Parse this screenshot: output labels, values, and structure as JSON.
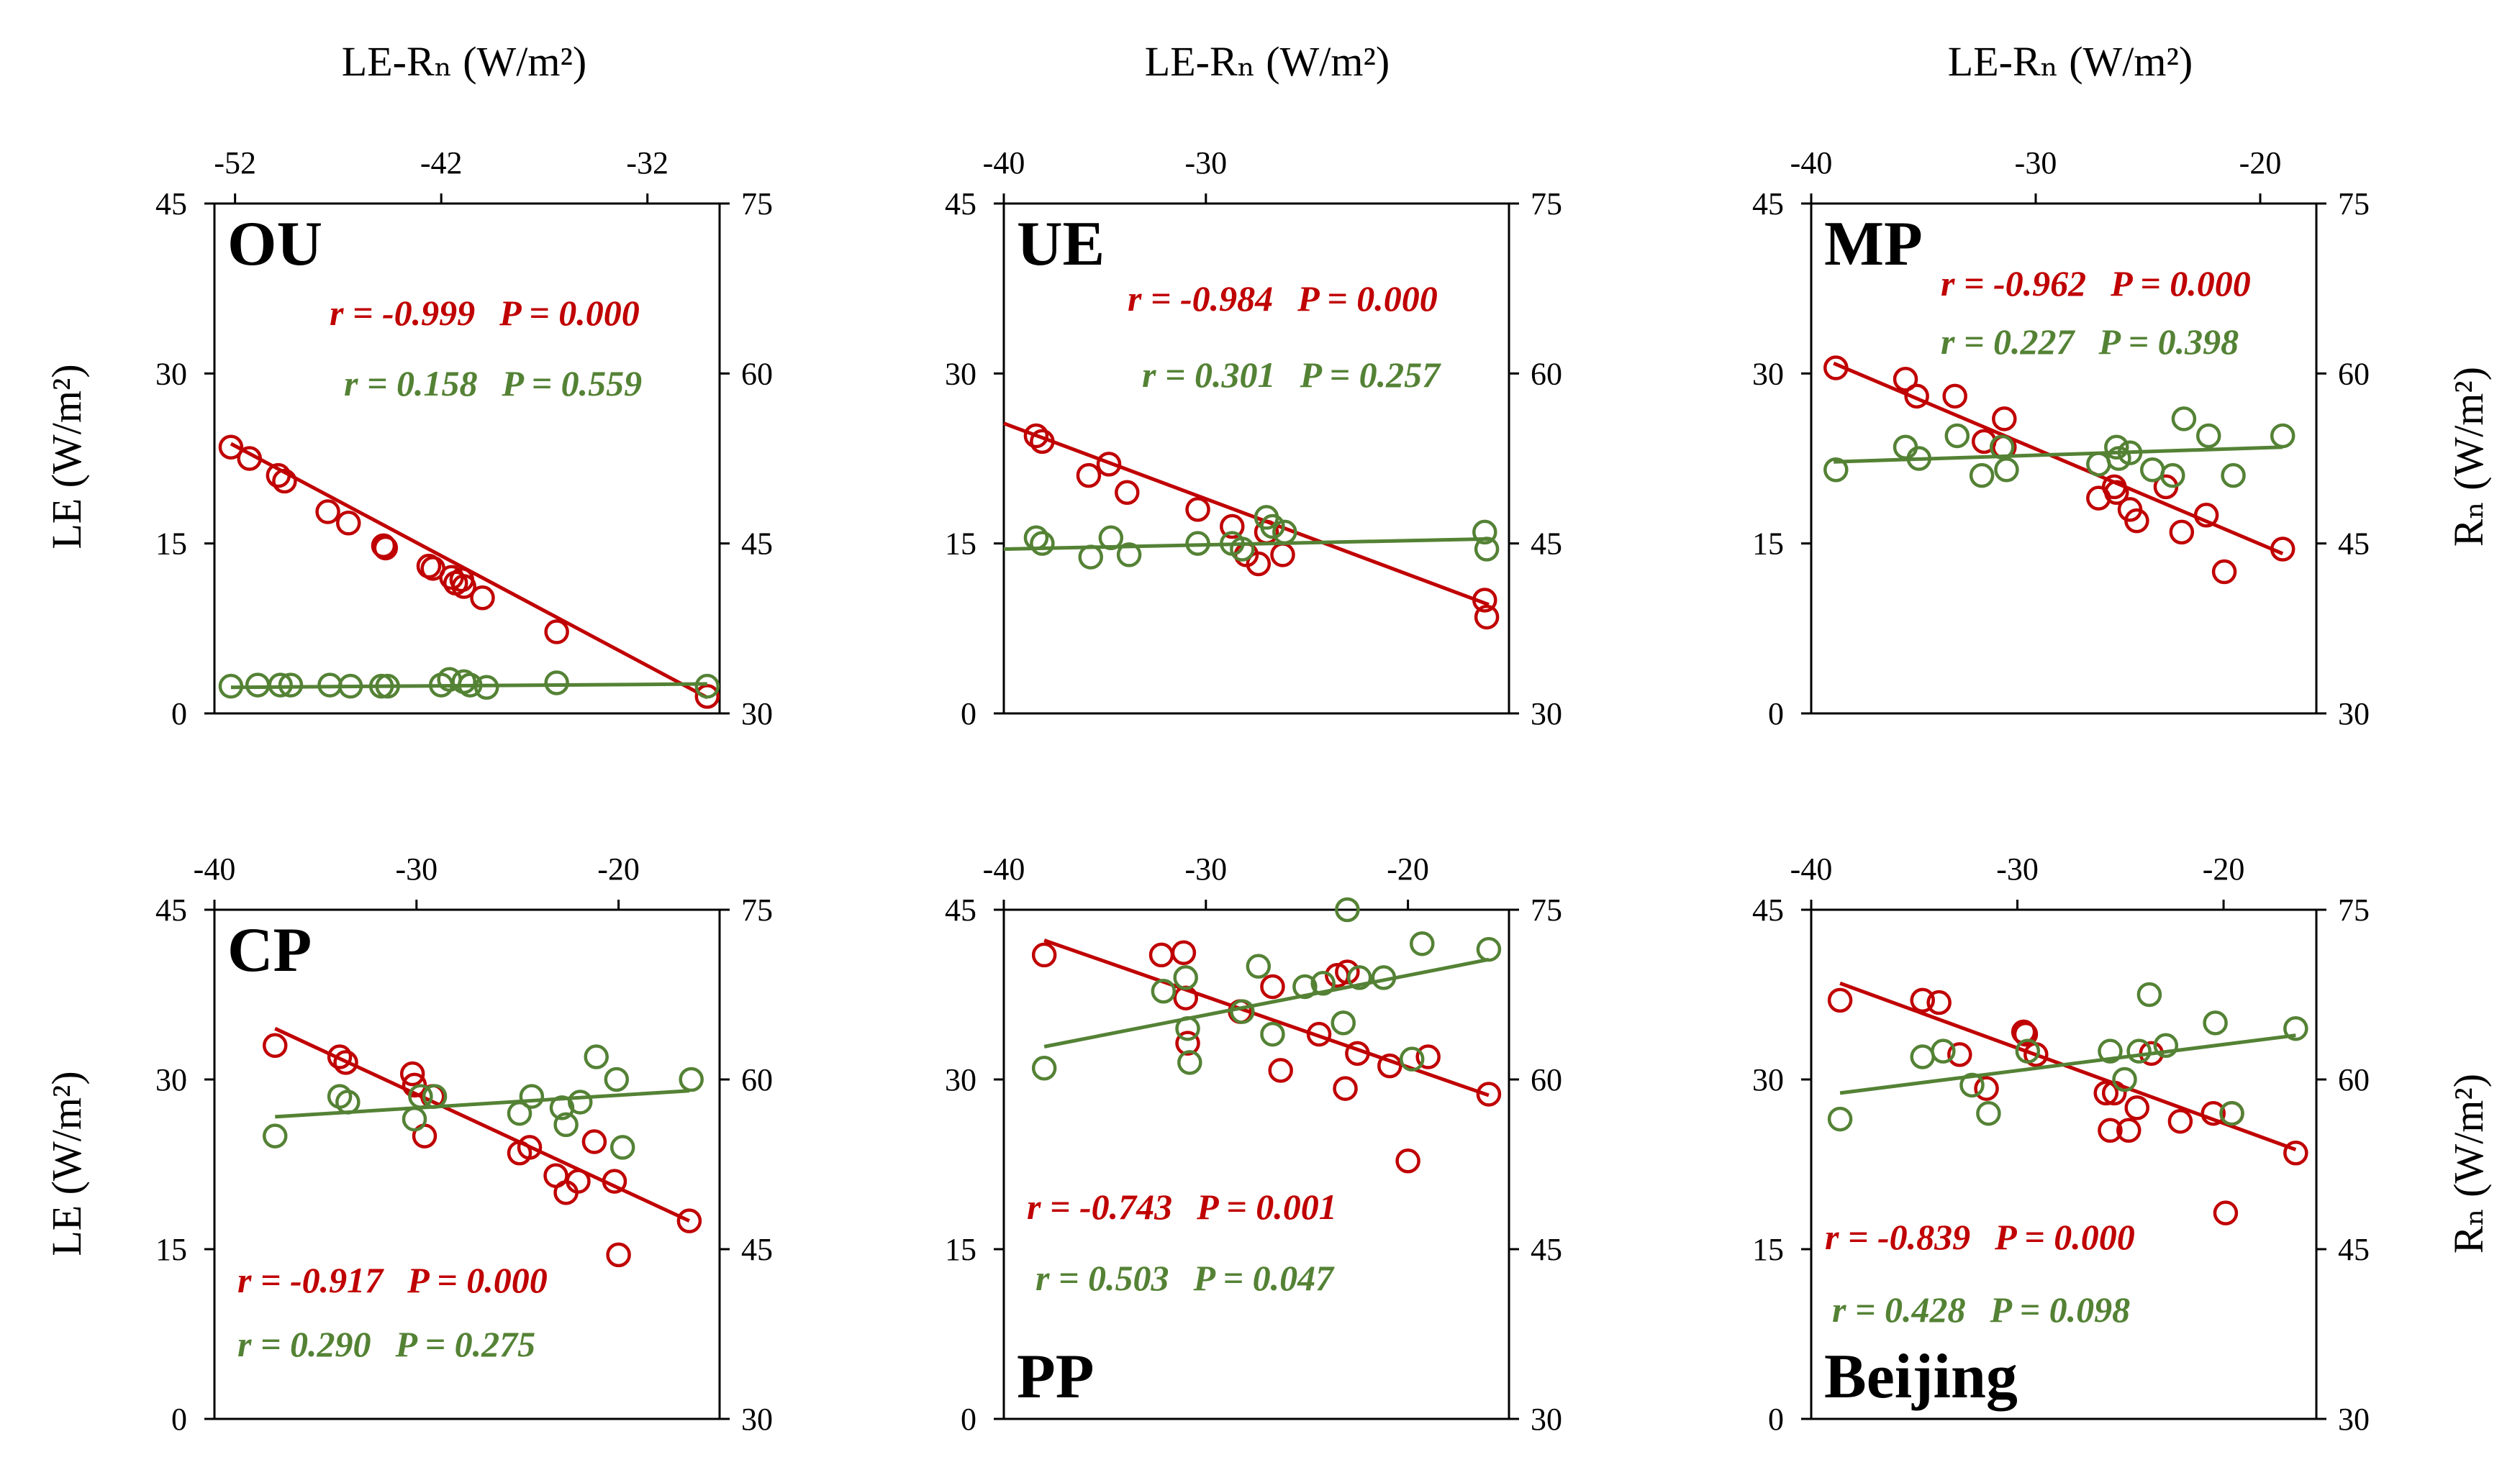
{
  "figure": {
    "ylabel_left": "LE (W/m²)",
    "ylabel_right": "Rₙ (W/m²)",
    "top_axis_title": "LE-Rₙ (W/m²)"
  },
  "colors": {
    "le": "#c00000",
    "rn": "#548235",
    "axis": "#000000"
  },
  "chart_data": [
    {
      "panel": "OU",
      "type": "scatter",
      "xlabel": "LE-Rₙ (W/m²)",
      "ylabel": "LE (W/m²)",
      "y2label": "Rₙ (W/m²)",
      "xlim": [
        -53,
        -28.5
      ],
      "xticks": [
        -52,
        -42,
        -32
      ],
      "xtick_labels": [
        "-52",
        "-42",
        "-32"
      ],
      "ylim": [
        0,
        45
      ],
      "yticks": [
        0,
        15,
        30,
        45
      ],
      "ytick_labels": [
        "0",
        "15",
        "30",
        "45"
      ],
      "y2lim": [
        30,
        75
      ],
      "y2ticks": [
        30,
        45,
        60,
        75
      ],
      "y2tick_labels": [
        "30",
        "45",
        "60",
        "75"
      ],
      "label_pos": "top-left",
      "series": [
        {
          "name": "LE",
          "axis": "left",
          "color": "#c00000",
          "x": [
            -52.2,
            -51.3,
            -49.9,
            -49.6,
            -47.5,
            -46.5,
            -44.8,
            -44.7,
            -42.6,
            -42.4,
            -41.5,
            -41.3,
            -41.0,
            -40.9,
            -40.0,
            -36.4,
            -29.1
          ],
          "y": [
            23.5,
            22.5,
            21.0,
            20.5,
            17.8,
            16.8,
            14.8,
            14.6,
            13.0,
            12.8,
            12.0,
            11.5,
            11.8,
            11.2,
            10.2,
            7.2,
            1.5
          ],
          "fit": {
            "x": [
              -52.2,
              -29.1
            ],
            "y": [
              23.8,
              1.4
            ]
          },
          "stat": {
            "r": "r = -0.999",
            "p": "P = 0.000"
          }
        },
        {
          "name": "Rn",
          "axis": "right",
          "color": "#548235",
          "x": [
            -52.2,
            -50.9,
            -49.8,
            -49.3,
            -47.4,
            -46.4,
            -44.9,
            -44.6,
            -42.0,
            -41.6,
            -40.9,
            -40.6,
            -39.8,
            -36.4,
            -29.1
          ],
          "y": [
            32.4,
            32.5,
            32.5,
            32.5,
            32.5,
            32.4,
            32.4,
            32.4,
            32.5,
            33.0,
            32.8,
            32.5,
            32.3,
            32.7,
            32.4
          ],
          "fit": {
            "x": [
              -52.2,
              -29.1
            ],
            "y": [
              32.3,
              32.6
            ]
          },
          "stat": {
            "r": "r = 0.158",
            "p": "P = 0.559"
          }
        }
      ]
    },
    {
      "panel": "UE",
      "type": "scatter",
      "xlabel": "LE-Rₙ (W/m²)",
      "ylabel": "LE (W/m²)",
      "y2label": "Rₙ (W/m²)",
      "xlim": [
        -40,
        -15
      ],
      "xticks": [
        -40,
        -30
      ],
      "xtick_labels": [
        "-40",
        "-30"
      ],
      "ylim": [
        0,
        45
      ],
      "yticks": [
        0,
        15,
        30,
        45
      ],
      "ytick_labels": [
        "0",
        "15",
        "30",
        "45"
      ],
      "y2lim": [
        30,
        75
      ],
      "y2ticks": [
        30,
        45,
        60,
        75
      ],
      "y2tick_labels": [
        "30",
        "45",
        "60",
        "75"
      ],
      "label_pos": "top-left",
      "series": [
        {
          "name": "LE",
          "axis": "left",
          "color": "#c00000",
          "x": [
            -38.4,
            -38.1,
            -35.8,
            -34.8,
            -33.9,
            -30.4,
            -28.7,
            -28.0,
            -27.4,
            -27.0,
            -26.2,
            -16.2,
            -16.1
          ],
          "y": [
            24.5,
            24.0,
            21.0,
            22.0,
            19.5,
            18.0,
            16.5,
            14.0,
            13.2,
            16.0,
            14.0,
            10.0,
            8.5
          ],
          "fit": {
            "x": [
              -40,
              -16
            ],
            "y": [
              25.6,
              9.6
            ]
          },
          "stat": {
            "r": "r = -0.984",
            "p": "P = 0.000"
          }
        },
        {
          "name": "Rn",
          "axis": "right",
          "color": "#548235",
          "x": [
            -38.4,
            -38.1,
            -35.7,
            -34.7,
            -33.8,
            -30.4,
            -28.7,
            -28.2,
            -27.0,
            -26.7,
            -26.1,
            -16.2,
            -16.1
          ],
          "y": [
            45.5,
            45.0,
            43.8,
            45.5,
            44.0,
            45.0,
            45.0,
            44.5,
            47.3,
            46.5,
            46.0,
            46.0,
            44.5
          ],
          "fit": {
            "x": [
              -40,
              -16
            ],
            "y": [
              44.5,
              45.4
            ]
          },
          "stat": {
            "r": "r = 0.301",
            "p": "P = 0.257"
          }
        }
      ]
    },
    {
      "panel": "MP",
      "type": "scatter",
      "xlabel": "LE-Rₙ (W/m²)",
      "ylabel": "LE (W/m²)",
      "y2label": "Rₙ (W/m²)",
      "xlim": [
        -40,
        -17.5
      ],
      "xticks": [
        -40,
        -30,
        -20
      ],
      "xtick_labels": [
        "-40",
        "-30",
        "-20"
      ],
      "ylim": [
        0,
        45
      ],
      "yticks": [
        0,
        15,
        30,
        45
      ],
      "ytick_labels": [
        "0",
        "15",
        "30",
        "45"
      ],
      "y2lim": [
        30,
        75
      ],
      "y2ticks": [
        30,
        45,
        60,
        75
      ],
      "y2tick_labels": [
        "30",
        "45",
        "60",
        "75"
      ],
      "label_pos": "top-left",
      "series": [
        {
          "name": "LE",
          "axis": "left",
          "color": "#c00000",
          "x": [
            -38.9,
            -35.8,
            -35.3,
            -33.6,
            -32.3,
            -31.4,
            -31.4,
            -27.2,
            -26.5,
            -26.4,
            -25.8,
            -25.5,
            -24.2,
            -23.5,
            -22.4,
            -21.6,
            -19.0
          ],
          "y": [
            30.5,
            29.5,
            28.0,
            28.0,
            24.0,
            26.0,
            23.5,
            19.0,
            20.0,
            19.5,
            18.0,
            17.0,
            20.0,
            16.0,
            17.5,
            12.5,
            14.5
          ],
          "fit": {
            "x": [
              -39,
              -19
            ],
            "y": [
              30.9,
              14.1
            ]
          },
          "stat": {
            "r": "r = -0.962",
            "p": "P = 0.000"
          }
        },
        {
          "name": "Rn",
          "axis": "right",
          "color": "#548235",
          "x": [
            -38.9,
            -35.8,
            -35.2,
            -33.5,
            -32.4,
            -31.5,
            -31.3,
            -27.2,
            -26.4,
            -26.3,
            -25.8,
            -24.8,
            -23.9,
            -23.4,
            -22.3,
            -21.2,
            -19.0
          ],
          "y": [
            51.5,
            53.5,
            52.5,
            54.5,
            51.0,
            53.5,
            51.5,
            52.0,
            53.5,
            52.5,
            53.0,
            51.5,
            51.0,
            56.0,
            54.5,
            51.0,
            54.5
          ],
          "fit": {
            "x": [
              -39,
              -19
            ],
            "y": [
              52.2,
              53.5
            ]
          },
          "stat": {
            "r": "r = 0.227",
            "p": "P = 0.398"
          }
        }
      ]
    },
    {
      "panel": "CP",
      "type": "scatter",
      "xlabel": "LE-Rₙ (W/m²)",
      "ylabel": "LE (W/m²)",
      "y2label": "Rₙ (W/m²)",
      "xlim": [
        -40,
        -15
      ],
      "xticks": [
        -40,
        -30,
        -20
      ],
      "xtick_labels": [
        "-40",
        "-30",
        "-20"
      ],
      "ylim": [
        0,
        45
      ],
      "yticks": [
        0,
        15,
        30,
        45
      ],
      "ytick_labels": [
        "0",
        "15",
        "30",
        "45"
      ],
      "y2lim": [
        30,
        75
      ],
      "y2ticks": [
        30,
        45,
        60,
        75
      ],
      "y2tick_labels": [
        "30",
        "45",
        "60",
        "75"
      ],
      "label_pos": "top-left",
      "series": [
        {
          "name": "LE",
          "axis": "left",
          "color": "#c00000",
          "x": [
            -37.0,
            -33.8,
            -33.5,
            -30.2,
            -30.1,
            -29.6,
            -29.2,
            -24.9,
            -24.4,
            -23.1,
            -22.6,
            -22.0,
            -21.2,
            -20.2,
            -20.0,
            -16.5
          ],
          "y": [
            33.0,
            32.0,
            31.5,
            30.5,
            29.5,
            25.0,
            28.5,
            23.5,
            24.0,
            21.5,
            20.0,
            21.0,
            24.5,
            21.0,
            14.5,
            17.5
          ],
          "fit": {
            "x": [
              -37,
              -16.5
            ],
            "y": [
              34.5,
              17.5
            ]
          },
          "stat": {
            "r": "r = -0.917",
            "p": "P = 0.000"
          }
        },
        {
          "name": "Rn",
          "axis": "right",
          "color": "#548235",
          "x": [
            -37.0,
            -33.8,
            -33.4,
            -30.1,
            -29.8,
            -29.1,
            -24.9,
            -24.3,
            -22.8,
            -22.6,
            -21.9,
            -21.1,
            -20.1,
            -19.8,
            -16.4
          ],
          "y": [
            55.0,
            58.5,
            58.0,
            56.5,
            58.5,
            58.5,
            57.0,
            58.5,
            57.5,
            56.0,
            58.0,
            62.0,
            60.0,
            54.0,
            60.0
          ],
          "fit": {
            "x": [
              -37,
              -16.5
            ],
            "y": [
              56.7,
              59.0
            ]
          },
          "stat": {
            "r": "r = 0.290",
            "p": "P = 0.275"
          }
        }
      ]
    },
    {
      "panel": "PP",
      "type": "scatter",
      "xlabel": "LE-Rₙ (W/m²)",
      "ylabel": "LE (W/m²)",
      "y2label": "Rₙ (W/m²)",
      "xlim": [
        -40,
        -15
      ],
      "xticks": [
        -40,
        -30,
        -20
      ],
      "xtick_labels": [
        "-40",
        "-30",
        "-20"
      ],
      "ylim": [
        0,
        45
      ],
      "yticks": [
        0,
        15,
        30,
        45
      ],
      "ytick_labels": [
        "0",
        "15",
        "30",
        "45"
      ],
      "y2lim": [
        30,
        75
      ],
      "y2ticks": [
        30,
        45,
        60,
        75
      ],
      "y2tick_labels": [
        "30",
        "45",
        "60",
        "75"
      ],
      "label_pos": "bottom-left",
      "series": [
        {
          "name": "LE",
          "axis": "left",
          "color": "#c00000",
          "x": [
            -38.0,
            -32.2,
            -31.1,
            -31.0,
            -30.9,
            -28.3,
            -26.7,
            -26.3,
            -24.4,
            -23.5,
            -23.1,
            -23.0,
            -22.5,
            -20.9,
            -20.0,
            -19.0,
            -16.0
          ],
          "y": [
            41.0,
            41.0,
            41.2,
            37.2,
            33.2,
            36.0,
            38.2,
            30.8,
            34.0,
            39.2,
            29.2,
            39.5,
            32.3,
            31.2,
            22.8,
            32.0,
            28.7
          ],
          "fit": {
            "x": [
              -38,
              -16
            ],
            "y": [
              42.3,
              28.6
            ]
          },
          "stat": {
            "r": "r = -0.743",
            "p": "P = 0.001"
          }
        },
        {
          "name": "Rn",
          "axis": "right",
          "color": "#548235",
          "x": [
            -38.0,
            -32.1,
            -31.0,
            -30.9,
            -30.8,
            -28.2,
            -27.4,
            -26.7,
            -25.1,
            -24.2,
            -23.2,
            -23.0,
            -22.4,
            -21.2,
            -19.8,
            -19.3,
            -16.0
          ],
          "y": [
            61.0,
            67.8,
            69.0,
            64.5,
            61.5,
            66.0,
            70.0,
            64.0,
            68.2,
            68.5,
            65.0,
            75.0,
            69.0,
            69.0,
            61.8,
            72.0,
            71.5
          ],
          "fit": {
            "x": [
              -38,
              -16
            ],
            "y": [
              62.9,
              70.6
            ]
          },
          "stat": {
            "r": "r = 0.503",
            "p": "P = 0.047"
          }
        }
      ]
    },
    {
      "panel": "Beijing",
      "type": "scatter",
      "xlabel": "LE-Rₙ (W/m²)",
      "ylabel": "LE (W/m²)",
      "y2label": "Rₙ (W/m²)",
      "xlim": [
        -40,
        -15.5
      ],
      "xticks": [
        -40,
        -30,
        -20
      ],
      "xtick_labels": [
        "-40",
        "-30",
        "-20"
      ],
      "ylim": [
        0,
        45
      ],
      "yticks": [
        0,
        15,
        30,
        45
      ],
      "ytick_labels": [
        "0",
        "15",
        "30",
        "45"
      ],
      "y2lim": [
        30,
        75
      ],
      "y2ticks": [
        30,
        45,
        60,
        75
      ],
      "y2tick_labels": [
        "30",
        "45",
        "60",
        "75"
      ],
      "label_pos": "bottom-left",
      "series": [
        {
          "name": "LE",
          "axis": "left",
          "color": "#c00000",
          "x": [
            -38.6,
            -34.6,
            -33.8,
            -32.8,
            -31.5,
            -29.7,
            -29.6,
            -29.1,
            -25.7,
            -25.5,
            -25.3,
            -24.6,
            -24.2,
            -23.5,
            -22.1,
            -20.5,
            -19.9,
            -19.6,
            -16.5
          ],
          "y": [
            37.0,
            37.0,
            36.8,
            32.2,
            29.2,
            34.2,
            34.0,
            32.2,
            28.8,
            25.5,
            28.8,
            25.5,
            27.5,
            32.3,
            26.3,
            27.0,
            18.2,
            27.0,
            23.5
          ],
          "fit": {
            "x": [
              -38.6,
              -16.5
            ],
            "y": [
              38.5,
              23.8
            ]
          },
          "stat": {
            "r": "r = -0.839",
            "p": "P = 0.000"
          }
        },
        {
          "name": "Rn",
          "axis": "right",
          "color": "#548235",
          "x": [
            -38.6,
            -34.6,
            -33.6,
            -32.2,
            -31.4,
            -29.5,
            -25.5,
            -24.8,
            -24.1,
            -23.6,
            -22.8,
            -20.4,
            -19.6,
            -16.5
          ],
          "y": [
            56.5,
            62.0,
            62.5,
            59.5,
            57.0,
            62.5,
            62.5,
            60.0,
            62.5,
            67.5,
            63.0,
            65.0,
            57.0,
            64.5
          ],
          "fit": {
            "x": [
              -38.6,
              -16.5
            ],
            "y": [
              58.8,
              63.9
            ]
          },
          "stat": {
            "r": "r = 0.428",
            "p": "P = 0.098"
          }
        }
      ]
    }
  ]
}
